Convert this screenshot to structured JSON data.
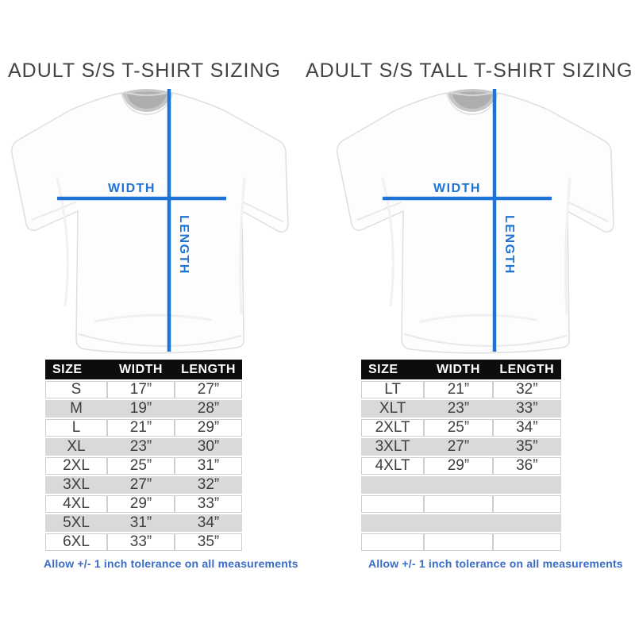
{
  "colors": {
    "page_bg": "#ffffff",
    "title_text": "#434343",
    "measure_blue": "#1e73d8",
    "footnote_blue": "#3b6cc5",
    "header_bg": "#0d0d0d",
    "header_text": "#ffffff",
    "row_alt": "#d9d9d9",
    "cell_border": "#cfcfcf",
    "cell_text": "#3e3e3e"
  },
  "chart_data": [
    {
      "type": "table",
      "title": "ADULT S/S T-SHIRT SIZING",
      "columns": [
        "SIZE",
        "WIDTH",
        "LENGTH"
      ],
      "rows": [
        [
          "S",
          "17”",
          "27”"
        ],
        [
          "M",
          "19”",
          "28”"
        ],
        [
          "L",
          "21”",
          "29”"
        ],
        [
          "XL",
          "23”",
          "30”"
        ],
        [
          "2XL",
          "25”",
          "31”"
        ],
        [
          "3XL",
          "27”",
          "32”"
        ],
        [
          "4XL",
          "29”",
          "33”"
        ],
        [
          "5XL",
          "31”",
          "34”"
        ],
        [
          "6XL",
          "33”",
          "35”"
        ]
      ],
      "empty_row_count": 0,
      "diagram_labels": {
        "width": "WIDTH",
        "length": "LENGTH"
      },
      "footnote": "Allow +/- 1 inch tolerance on all measurements"
    },
    {
      "type": "table",
      "title": "ADULT S/S TALL T-SHIRT SIZING",
      "columns": [
        "SIZE",
        "WIDTH",
        "LENGTH"
      ],
      "rows": [
        [
          "LT",
          "21”",
          "32”"
        ],
        [
          "XLT",
          "23”",
          "33”"
        ],
        [
          "2XLT",
          "25”",
          "34”"
        ],
        [
          "3XLT",
          "27”",
          "35”"
        ],
        [
          "4XLT",
          "29”",
          "36”"
        ]
      ],
      "empty_row_count": 4,
      "diagram_labels": {
        "width": "WIDTH",
        "length": "LENGTH"
      },
      "footnote": "Allow +/- 1 inch tolerance on all measurements"
    }
  ]
}
